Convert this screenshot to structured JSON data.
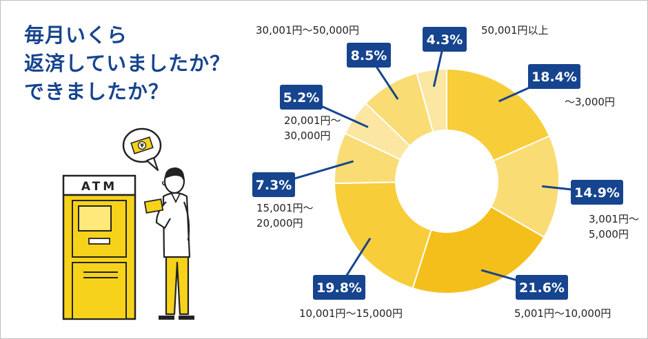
{
  "title_lines": [
    "毎月いくら",
    "返済していましたか？",
    "できましたか？"
  ],
  "atm_label": "ATM",
  "yen_symbol": "¥",
  "colors": {
    "title": "#16448e",
    "badge": "#16448e",
    "atm_yellow": "#f6d21b",
    "slice_dark": "#f5bf1b",
    "slice_mid": "#f7cd3a",
    "slice_light": "#f9dc74",
    "slice_pale": "#fbe6a2"
  },
  "chart_data": {
    "type": "pie",
    "donut": true,
    "unit": "%",
    "slices": [
      {
        "label": "〜3,000円",
        "label_lines": [
          "〜3,000円"
        ],
        "value": 18.4,
        "display": "18.4%",
        "color": "#f7cd3a"
      },
      {
        "label": "3,001円〜5,000円",
        "label_lines": [
          "3,001円〜",
          "5,000円"
        ],
        "value": 14.9,
        "display": "14.9%",
        "color": "#f9dc74"
      },
      {
        "label": "5,001円〜10,000円",
        "label_lines": [
          "5,001円〜10,000円"
        ],
        "value": 21.6,
        "display": "21.6%",
        "color": "#f5bf1b"
      },
      {
        "label": "10,001円〜15,000円",
        "label_lines": [
          "10,001円〜15,000円"
        ],
        "value": 19.8,
        "display": "19.8%",
        "color": "#f7cd3a"
      },
      {
        "label": "15,001円〜20,000円",
        "label_lines": [
          "15,001円〜",
          "20,000円"
        ],
        "value": 7.3,
        "display": "7.3%",
        "color": "#f9dc74"
      },
      {
        "label": "20,001円〜30,000円",
        "label_lines": [
          "20,001円〜",
          "30,000円"
        ],
        "value": 5.2,
        "display": "5.2%",
        "color": "#fbe6a2"
      },
      {
        "label": "30,001円〜50,000円",
        "label_lines": [
          "30,001円〜50,000円"
        ],
        "value": 8.5,
        "display": "8.5%",
        "color": "#f9dc74"
      },
      {
        "label": "50,001円以上",
        "label_lines": [
          "50,001円以上"
        ],
        "value": 4.3,
        "display": "4.3%",
        "color": "#fbe6a2"
      }
    ]
  }
}
